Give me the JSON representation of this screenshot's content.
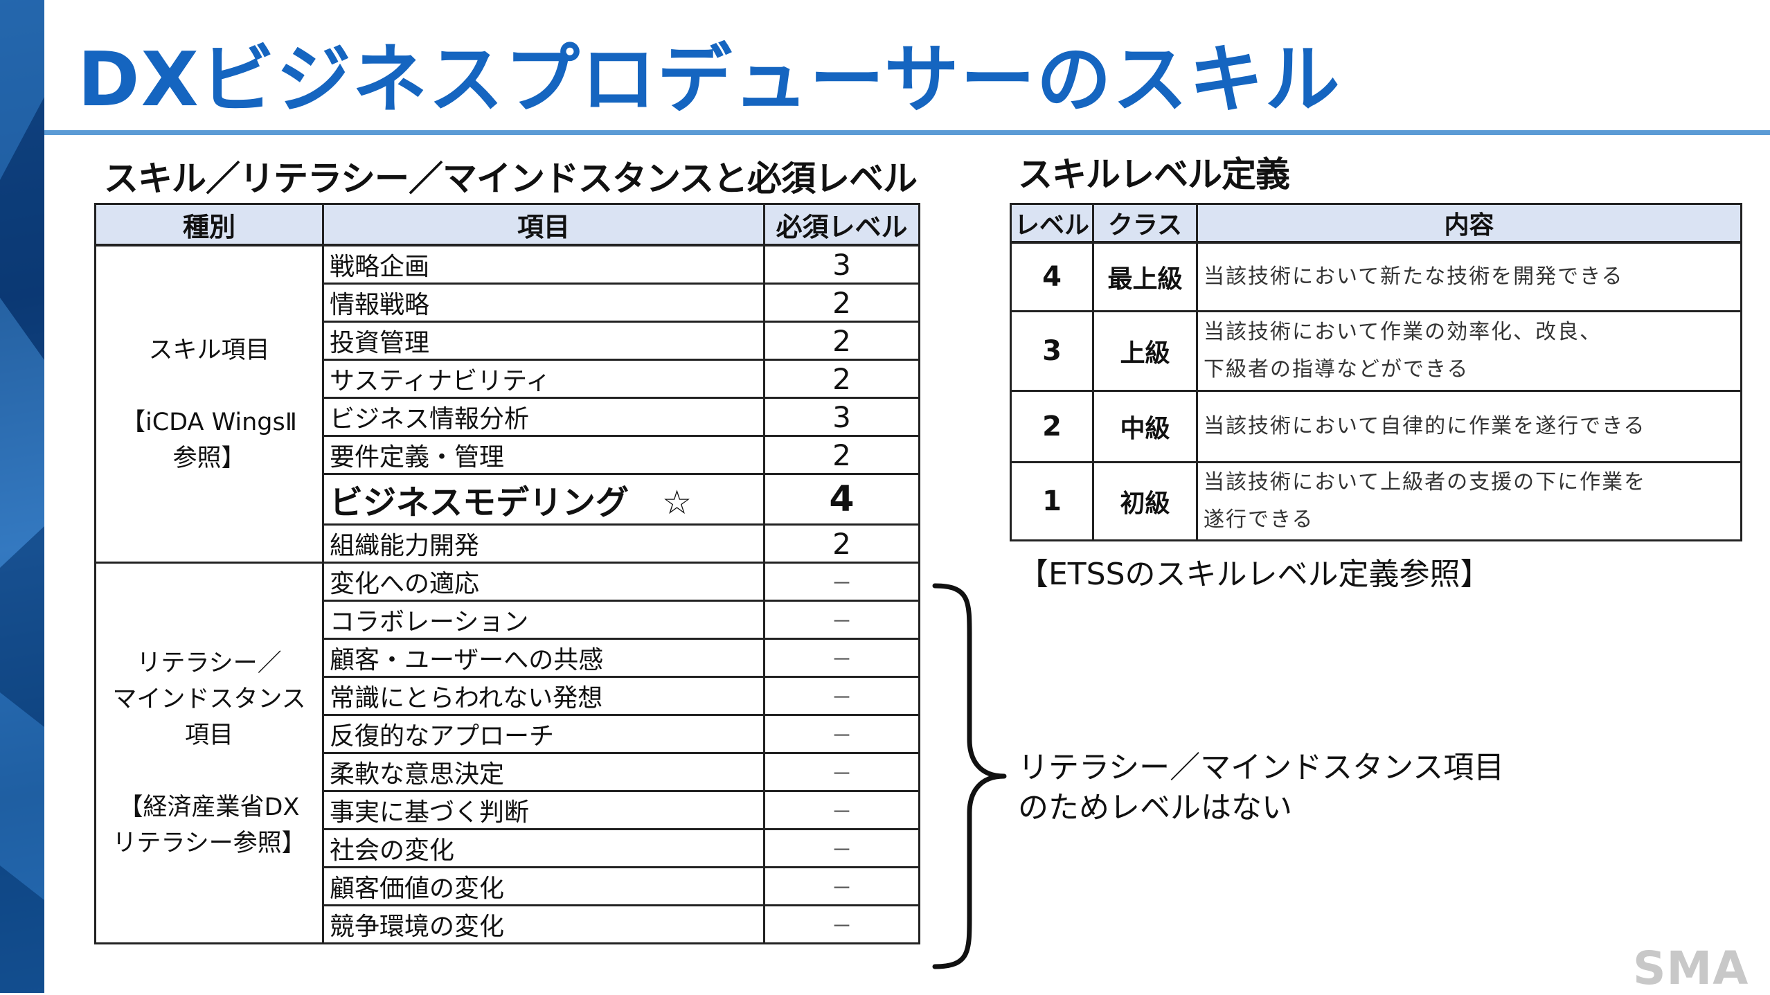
{
  "title": "DXビジネスプロデューサーのスキル",
  "skill_table": {
    "heading": "スキル／リテラシー／マインドスタンスと必須レベル",
    "headers": [
      "種別",
      "項目",
      "必須レベル"
    ],
    "skill_category": {
      "name": "スキル項目",
      "ref_line1": "【iCDA WingsⅡ",
      "ref_line2": "参照】"
    },
    "skill_rows": [
      {
        "item": "戦略企画",
        "level": "3"
      },
      {
        "item": "情報戦略",
        "level": "2"
      },
      {
        "item": "投資管理",
        "level": "2"
      },
      {
        "item": "サスティナビリティ",
        "level": "2"
      },
      {
        "item": "ビジネス情報分析",
        "level": "3"
      },
      {
        "item": "要件定義・管理",
        "level": "2"
      },
      {
        "item": "ビジネスモデリング　☆",
        "level": "4"
      },
      {
        "item": "組織能力開発",
        "level": "2"
      }
    ],
    "literacy_category": {
      "name_line1": "リテラシー／",
      "name_line2": "マインドスタンス項目",
      "ref_line1": "【経済産業省DX",
      "ref_line2": "リテラシー参照】"
    },
    "literacy_rows": [
      {
        "item": "変化への適応",
        "level": "－"
      },
      {
        "item": "コラボレーション",
        "level": "－"
      },
      {
        "item": "顧客・ユーザーへの共感",
        "level": "－"
      },
      {
        "item": "常識にとらわれない発想",
        "level": "－"
      },
      {
        "item": "反復的なアプローチ",
        "level": "－"
      },
      {
        "item": "柔軟な意思決定",
        "level": "－"
      },
      {
        "item": "事実に基づく判断",
        "level": "－"
      },
      {
        "item": "社会の変化",
        "level": "－"
      },
      {
        "item": "顧客価値の変化",
        "level": "－"
      },
      {
        "item": "競争環境の変化",
        "level": "－"
      }
    ]
  },
  "level_table": {
    "heading": "スキルレベル定義",
    "headers": [
      "レベル",
      "クラス",
      "内容"
    ],
    "rows": [
      {
        "level": "4",
        "class": "最上級",
        "desc_line1": "当該技術において新たな技術を開発できる",
        "desc_line2": ""
      },
      {
        "level": "3",
        "class": "上級",
        "desc_line1": "当該技術において作業の効率化、改良、",
        "desc_line2": "下級者の指導などができる"
      },
      {
        "level": "2",
        "class": "中級",
        "desc_line1": "当該技術において自律的に作業を遂行できる",
        "desc_line2": ""
      },
      {
        "level": "1",
        "class": "初級",
        "desc_line1": "当該技術において上級者の支援の下に作業を",
        "desc_line2": "遂行できる"
      }
    ],
    "note": "【ETSSのスキルレベル定義参照】"
  },
  "brace_note": {
    "line1": "リテラシー／マインドスタンス項目",
    "line2": "のためレベルはない"
  },
  "logo": "SMA",
  "colors": {
    "title": "#1565c0",
    "rule": "#5b9bd5",
    "header_bg": "#dae3f3",
    "side_band": "#1a5a9e",
    "logo": "#c8c8c8"
  }
}
